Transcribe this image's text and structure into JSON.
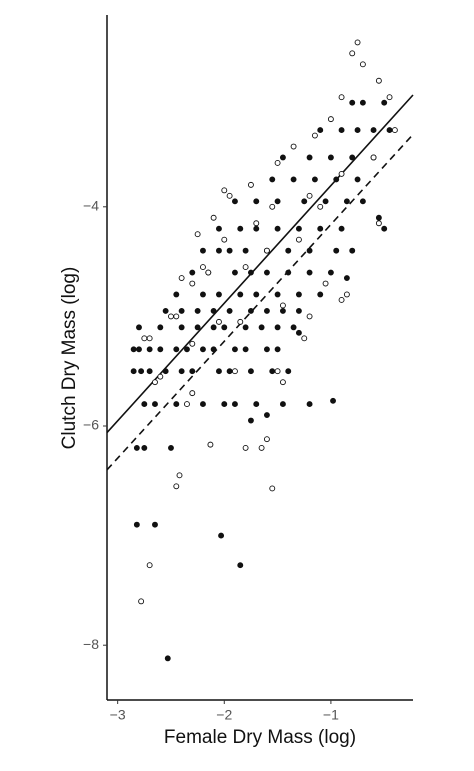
{
  "chart_data": {
    "type": "scatter",
    "x_label": "Female Dry Mass (log)",
    "y_label": "Clutch Dry Mass (log)",
    "xlim": [
      -3.1,
      -0.23
    ],
    "ylim": [
      -8.5,
      -2.25
    ],
    "xticks": [
      {
        "value": -3,
        "label": "−3"
      },
      {
        "value": -2,
        "label": "−2"
      },
      {
        "value": -1,
        "label": "−1"
      }
    ],
    "yticks": [
      {
        "value": -8,
        "label": "−8"
      },
      {
        "value": -6,
        "label": "−6"
      },
      {
        "value": -4,
        "label": "−4"
      }
    ],
    "grid": false,
    "series": [
      {
        "marker": "filled",
        "color": "#111111",
        "x": [
          -2.82,
          -2.65,
          -2.53,
          -2.03,
          -1.85,
          -0.98,
          -2.82,
          -2.75,
          -2.85,
          -2.8,
          -2.7,
          -2.6,
          -2.45,
          -2.35,
          -2.2,
          -2.1,
          -1.9,
          -1.8,
          -1.6,
          -1.5,
          -2.85,
          -2.78,
          -2.7,
          -2.55,
          -2.4,
          -2.3,
          -2.05,
          -1.95,
          -1.75,
          -1.55,
          -1.4,
          -2.75,
          -2.65,
          -2.45,
          -2.2,
          -2.0,
          -1.9,
          -1.7,
          -1.45,
          -1.2,
          -2.8,
          -2.6,
          -2.4,
          -2.25,
          -2.1,
          -2.0,
          -1.8,
          -1.65,
          -1.5,
          -1.35,
          -2.55,
          -2.4,
          -2.25,
          -2.1,
          -1.95,
          -1.75,
          -1.6,
          -1.45,
          -1.3,
          -2.45,
          -2.2,
          -2.05,
          -1.85,
          -1.7,
          -1.5,
          -1.3,
          -1.1,
          -2.3,
          -2.15,
          -1.9,
          -1.75,
          -1.6,
          -1.4,
          -1.2,
          -1.0,
          -2.2,
          -2.05,
          -1.95,
          -1.8,
          -1.6,
          -1.4,
          -1.2,
          -0.95,
          -0.8,
          -2.05,
          -1.85,
          -1.7,
          -1.5,
          -1.3,
          -1.1,
          -0.9,
          -0.5,
          -1.9,
          -1.7,
          -1.5,
          -1.25,
          -1.05,
          -0.85,
          -0.7,
          -1.55,
          -1.35,
          -1.15,
          -0.95,
          -0.75,
          -1.45,
          -1.2,
          -1.0,
          -0.8,
          -0.6,
          -1.1,
          -0.9,
          -0.75,
          -0.6,
          -0.45,
          -0.8,
          -0.7,
          -0.5,
          -0.55,
          -0.85,
          -1.3,
          -1.6,
          -2.5,
          -1.75
        ],
        "values": [
          -6.9,
          -6.9,
          -8.12,
          -7.0,
          -7.27,
          -5.77,
          -6.2,
          -6.2,
          -5.3,
          -5.3,
          -5.3,
          -5.3,
          -5.3,
          -5.3,
          -5.3,
          -5.3,
          -5.3,
          -5.3,
          -5.3,
          -5.3,
          -5.5,
          -5.5,
          -5.5,
          -5.5,
          -5.5,
          -5.5,
          -5.5,
          -5.5,
          -5.5,
          -5.5,
          -5.5,
          -5.8,
          -5.8,
          -5.8,
          -5.8,
          -5.8,
          -5.8,
          -5.8,
          -5.8,
          -5.8,
          -5.1,
          -5.1,
          -5.1,
          -5.1,
          -5.1,
          -5.1,
          -5.1,
          -5.1,
          -5.1,
          -5.1,
          -4.95,
          -4.95,
          -4.95,
          -4.95,
          -4.95,
          -4.95,
          -4.95,
          -4.95,
          -4.95,
          -4.8,
          -4.8,
          -4.8,
          -4.8,
          -4.8,
          -4.8,
          -4.8,
          -4.8,
          -4.6,
          -4.6,
          -4.6,
          -4.6,
          -4.6,
          -4.6,
          -4.6,
          -4.6,
          -4.4,
          -4.4,
          -4.4,
          -4.4,
          -4.4,
          -4.4,
          -4.4,
          -4.4,
          -4.4,
          -4.2,
          -4.2,
          -4.2,
          -4.2,
          -4.2,
          -4.2,
          -4.2,
          -4.2,
          -3.95,
          -3.95,
          -3.95,
          -3.95,
          -3.95,
          -3.95,
          -3.95,
          -3.75,
          -3.75,
          -3.75,
          -3.75,
          -3.75,
          -3.55,
          -3.55,
          -3.55,
          -3.55,
          -3.55,
          -3.3,
          -3.3,
          -3.3,
          -3.3,
          -3.3,
          -3.05,
          -3.05,
          -3.05,
          -4.1,
          -4.65,
          -5.15,
          -5.9,
          -6.2,
          -5.95
        ]
      },
      {
        "marker": "open",
        "color": "#111111",
        "x": [
          -2.78,
          -2.7,
          -2.45,
          -2.42,
          -2.13,
          -1.8,
          -1.65,
          -1.6,
          -1.55,
          -2.6,
          -2.65,
          -2.3,
          -2.35,
          -1.9,
          -1.5,
          -1.45,
          -1.25,
          -0.85,
          -0.9,
          -2.75,
          -2.7,
          -2.5,
          -2.45,
          -2.3,
          -2.2,
          -2.15,
          -2.4,
          -2.0,
          -2.25,
          -2.1,
          -1.95,
          -2.0,
          -1.75,
          -1.5,
          -1.35,
          -1.15,
          -1.0,
          -0.9,
          -0.8,
          -0.75,
          -0.7,
          -0.55,
          -0.45,
          -0.4,
          -0.6,
          -0.55,
          -0.9,
          -1.2,
          -1.1,
          -1.6,
          -1.8,
          -1.3,
          -1.45,
          -1.2,
          -1.05,
          -2.05,
          -1.85,
          -2.3,
          -1.7,
          -1.55
        ],
        "values": [
          -7.6,
          -7.27,
          -6.55,
          -6.45,
          -6.17,
          -6.2,
          -6.2,
          -6.12,
          -6.57,
          -5.55,
          -5.6,
          -5.7,
          -5.8,
          -5.5,
          -5.5,
          -5.6,
          -5.2,
          -4.8,
          -4.85,
          -5.2,
          -5.2,
          -5.0,
          -5.0,
          -4.7,
          -4.55,
          -4.6,
          -4.65,
          -4.3,
          -4.25,
          -4.1,
          -3.9,
          -3.85,
          -3.8,
          -3.6,
          -3.45,
          -3.35,
          -3.2,
          -3.0,
          -2.6,
          -2.5,
          -2.7,
          -2.85,
          -3.0,
          -3.3,
          -3.55,
          -4.15,
          -3.7,
          -3.9,
          -4.0,
          -4.4,
          -4.55,
          -4.3,
          -4.9,
          -5.0,
          -4.7,
          -5.05,
          -5.05,
          -5.25,
          -4.15,
          -4.0
        ]
      }
    ],
    "fit_lines": [
      {
        "dash": "solid",
        "color": "#111111",
        "x": [
          -3.1,
          -0.23
        ],
        "values": [
          -6.06,
          -2.98
        ]
      },
      {
        "dash": "dashed",
        "color": "#111111",
        "x": [
          -3.1,
          -0.23
        ],
        "values": [
          -6.4,
          -3.34
        ]
      }
    ]
  }
}
